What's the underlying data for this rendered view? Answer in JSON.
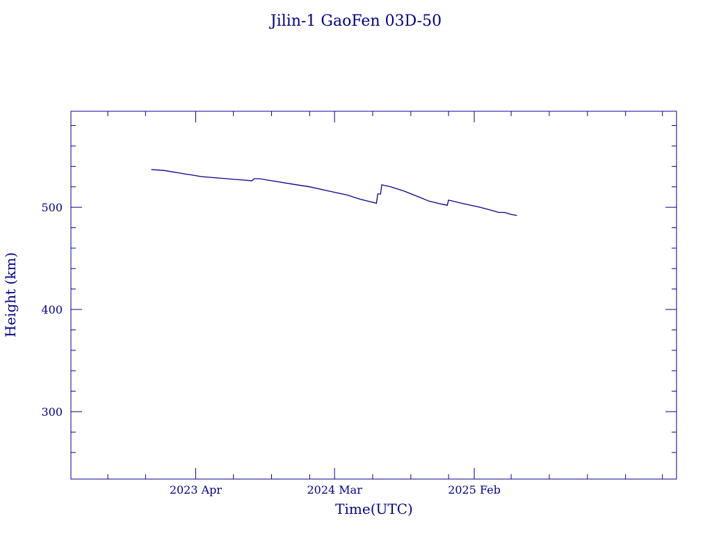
{
  "chart_data": {
    "type": "line",
    "title": "Jilin-1 GaoFen 03D-50",
    "xlabel": "Time(UTC)",
    "ylabel": "Height (km)",
    "x_axis_type": "date",
    "xlim": [
      "2022-06-04",
      "2026-06-04"
    ],
    "ylim": [
      234,
      594
    ],
    "x_ticks": [
      {
        "date": "2023-04-01",
        "label": "2023 Apr"
      },
      {
        "date": "2024-03-01",
        "label": "2024 Mar"
      },
      {
        "date": "2025-02-01",
        "label": "2025 Feb"
      }
    ],
    "x_minor_ticks": [
      "2022-09-01",
      "2022-12-01",
      "2023-07-01",
      "2023-10-01",
      "2024-01-01",
      "2024-06-01",
      "2024-09-01",
      "2024-12-01",
      "2025-05-01",
      "2025-08-01",
      "2025-11-01",
      "2026-02-01",
      "2026-05-01"
    ],
    "y_ticks": [
      300,
      400,
      500
    ],
    "y_minor_ticks": [
      260,
      280,
      320,
      340,
      360,
      380,
      420,
      440,
      460,
      480,
      520,
      540,
      560,
      580
    ],
    "grid": false,
    "color": "#00008b",
    "series": [
      {
        "x": [
          "2022-12-15",
          "2023-01-15",
          "2023-03-01",
          "2023-04-15",
          "2023-05-15",
          "2023-06-15",
          "2023-07-15",
          "2023-08-15",
          "2023-08-20",
          "2023-09-01",
          "2023-10-01",
          "2023-11-15",
          "2024-01-01",
          "2024-02-15",
          "2024-04-01",
          "2024-05-01",
          "2024-06-10",
          "2024-06-13",
          "2024-06-20",
          "2024-06-23",
          "2024-07-15",
          "2024-08-15",
          "2024-09-15",
          "2024-10-15",
          "2024-11-15",
          "2024-11-28",
          "2024-12-01",
          "2025-01-01",
          "2025-02-15",
          "2025-03-15",
          "2025-04-01",
          "2025-04-15",
          "2025-05-01",
          "2025-05-15"
        ],
        "y": [
          537,
          536,
          533,
          530,
          529,
          528,
          527,
          526,
          528,
          528,
          526,
          523,
          520,
          516,
          512,
          508,
          504,
          513,
          513,
          522,
          520,
          516,
          511,
          506,
          503,
          502,
          507,
          504,
          500,
          497,
          495,
          495,
          493,
          492
        ]
      }
    ]
  }
}
